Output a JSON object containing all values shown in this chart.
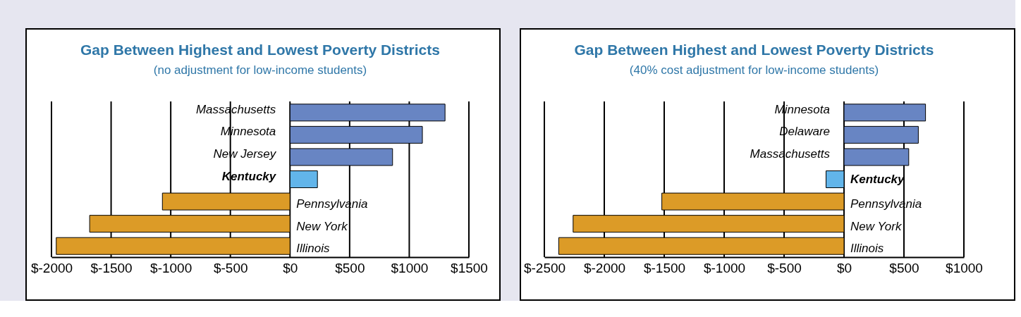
{
  "chart_data": [
    {
      "type": "bar",
      "orientation": "horizontal",
      "title": "Gap Between Highest and Lowest Poverty Districts",
      "subtitle": "(no adjustment for low-income students)",
      "categories": [
        "Massachusetts",
        "Minnesota",
        "New Jersey",
        "Kentucky",
        "Pennsylvania",
        "New York",
        "Illinois"
      ],
      "values": [
        1300,
        1110,
        860,
        230,
        -1070,
        -1680,
        -1960
      ],
      "colors": [
        "#6885c3",
        "#6885c3",
        "#6885c3",
        "#62b5ea",
        "#dc9b27",
        "#dc9b27",
        "#dc9b27"
      ],
      "xlim": [
        -2000,
        1500
      ],
      "xticks": [
        {
          "value": -2000,
          "label": "$-2000"
        },
        {
          "value": -1500,
          "label": "$-1500"
        },
        {
          "value": -1000,
          "label": "$-1000"
        },
        {
          "value": -500,
          "label": "$-500"
        },
        {
          "value": 0,
          "label": "$0"
        },
        {
          "value": 500,
          "label": "$500"
        },
        {
          "value": 1000,
          "label": "$1000"
        },
        {
          "value": 1500,
          "label": "$1500"
        }
      ],
      "grid": "x"
    },
    {
      "type": "bar",
      "orientation": "horizontal",
      "title": "Gap Between Highest and Lowest Poverty Districts",
      "subtitle": "(40% cost adjustment for low-income students)",
      "categories": [
        "Minnesota",
        "Delaware",
        "Massachusetts",
        "Kentucky",
        "Pennsylvania",
        "New York",
        "Illinois"
      ],
      "values": [
        680,
        620,
        540,
        -150,
        -1520,
        -2260,
        -2380
      ],
      "colors": [
        "#6885c3",
        "#6885c3",
        "#6885c3",
        "#62b5ea",
        "#dc9b27",
        "#dc9b27",
        "#dc9b27"
      ],
      "xlim": [
        -2500,
        1000
      ],
      "xticks": [
        {
          "value": -2500,
          "label": "$-2500"
        },
        {
          "value": -2000,
          "label": "$-2000"
        },
        {
          "value": -1500,
          "label": "$-1500"
        },
        {
          "value": -1000,
          "label": "$-1000"
        },
        {
          "value": -500,
          "label": "$-500"
        },
        {
          "value": 0,
          "label": "$0"
        },
        {
          "value": 500,
          "label": "$500"
        },
        {
          "value": 1000,
          "label": "$1000"
        }
      ],
      "grid": "x"
    }
  ]
}
